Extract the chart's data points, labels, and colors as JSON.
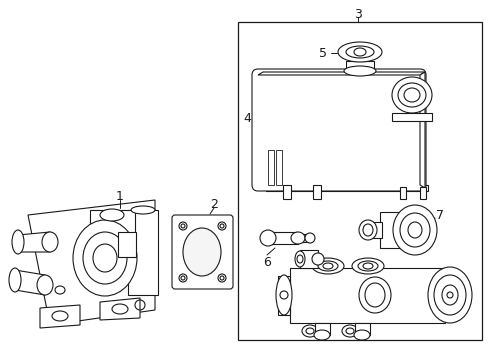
{
  "background_color": "#ffffff",
  "line_color": "#1a1a1a",
  "figsize": [
    4.89,
    3.6
  ],
  "dpi": 100,
  "lw": 0.8
}
